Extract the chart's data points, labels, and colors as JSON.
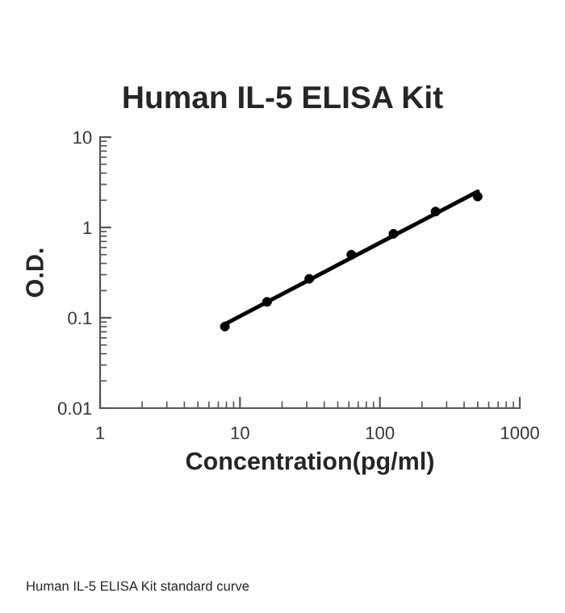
{
  "chart_data": {
    "type": "scatter",
    "title": "Human IL-5 ELISA Kit",
    "xlabel": "Concentration(pg/ml)",
    "ylabel": "O.D.",
    "annotations": [
      "Human IL-5 ELISA Kit standard curve"
    ],
    "log": "xy",
    "grid": false,
    "legend": false,
    "xlim": [
      1,
      1000
    ],
    "xticks": [
      1,
      10,
      100,
      1000
    ],
    "ylim": [
      0.01,
      10
    ],
    "yticks": [
      0.01,
      0.1,
      1,
      10
    ],
    "series": [
      {
        "marker": "circle",
        "color": "#000000",
        "x": [
          7.8,
          15.6,
          31.25,
          62.5,
          125,
          250,
          500
        ],
        "values": [
          0.08,
          0.15,
          0.27,
          0.5,
          0.85,
          1.5,
          2.2
        ]
      },
      {
        "type": "line",
        "color": "#000000",
        "line_style": "solid",
        "x": [
          7.8,
          500
        ],
        "values": [
          0.085,
          2.5
        ]
      }
    ]
  }
}
